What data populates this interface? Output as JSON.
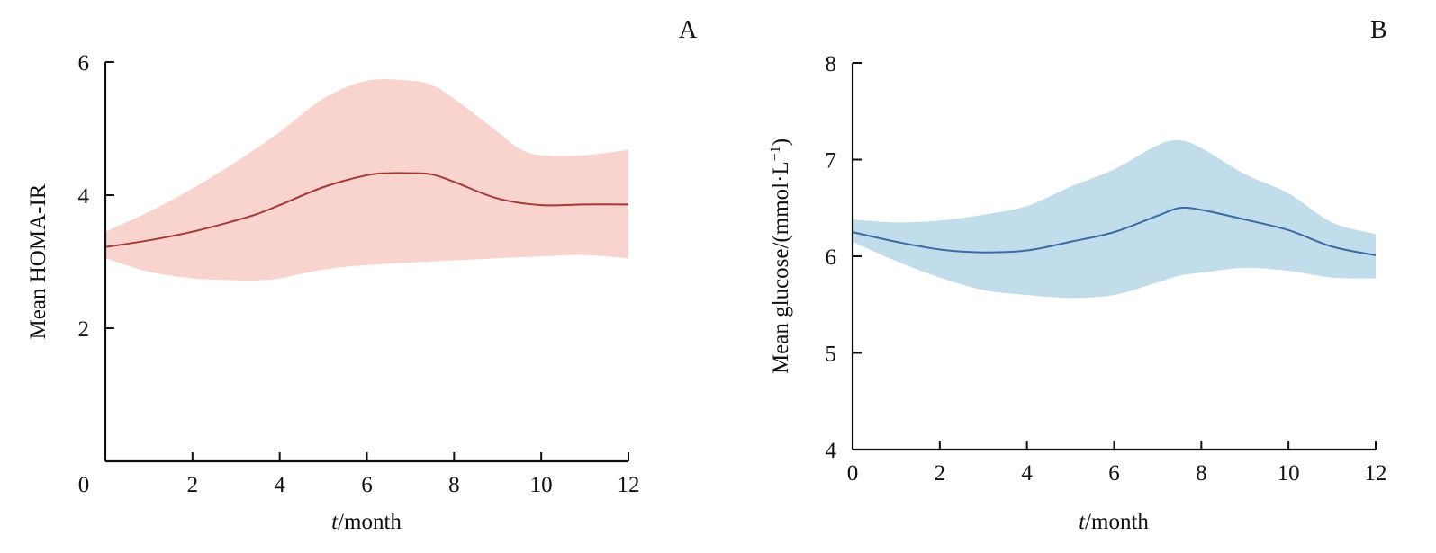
{
  "chart_data": [
    {
      "type": "area",
      "panel_label": "A",
      "title": "",
      "xlabel_italic": "t",
      "xlabel_rest": "/month",
      "ylabel": "Mean HOMA-IR",
      "xlim": [
        0,
        12
      ],
      "ylim": [
        0,
        6
      ],
      "xticks": [
        0,
        2,
        4,
        6,
        8,
        10,
        12
      ],
      "yticks": [
        2,
        4,
        6
      ],
      "grid": false,
      "colors": {
        "band": "#f9d3ce",
        "line": "#a63a33"
      },
      "series": [
        {
          "name": "mean",
          "x": [
            0,
            1,
            2,
            3,
            3.5,
            4,
            5,
            6,
            6.5,
            7,
            7.5,
            8,
            9,
            10,
            11,
            12
          ],
          "y": [
            3.22,
            3.32,
            3.45,
            3.62,
            3.72,
            3.85,
            4.12,
            4.3,
            4.33,
            4.33,
            4.31,
            4.2,
            3.95,
            3.85,
            3.86,
            3.86
          ]
        },
        {
          "name": "upper",
          "x": [
            0,
            1,
            2,
            3,
            4,
            5,
            6,
            7,
            7.5,
            8,
            9,
            9.5,
            10,
            11,
            12
          ],
          "y": [
            3.45,
            3.75,
            4.1,
            4.5,
            4.95,
            5.45,
            5.72,
            5.72,
            5.65,
            5.45,
            4.95,
            4.7,
            4.6,
            4.6,
            4.68
          ]
        },
        {
          "name": "lower",
          "x": [
            0,
            1,
            2,
            3,
            3.5,
            4,
            5,
            6,
            8,
            10,
            11,
            12
          ],
          "y": [
            3.05,
            2.85,
            2.75,
            2.72,
            2.72,
            2.75,
            2.88,
            2.95,
            3.02,
            3.08,
            3.1,
            3.05
          ]
        }
      ]
    },
    {
      "type": "area",
      "panel_label": "B",
      "title": "",
      "xlabel_italic": "t",
      "xlabel_rest": "/month",
      "ylabel_main": "Mean glucose/(mmol·L",
      "ylabel_sup": "−1",
      "ylabel_end": ")",
      "xlim": [
        0,
        12
      ],
      "ylim": [
        4,
        8
      ],
      "xticks": [
        0,
        2,
        4,
        6,
        8,
        10,
        12
      ],
      "yticks": [
        4,
        5,
        6,
        7,
        8
      ],
      "grid": false,
      "colors": {
        "band": "#c1dcea",
        "line": "#3a6ba3"
      },
      "series": [
        {
          "name": "mean",
          "x": [
            0,
            1,
            2,
            3,
            4,
            5,
            6,
            7,
            7.5,
            8,
            9,
            10,
            11,
            12
          ],
          "y": [
            6.25,
            6.15,
            6.07,
            6.04,
            6.06,
            6.15,
            6.25,
            6.42,
            6.5,
            6.48,
            6.38,
            6.27,
            6.1,
            6.01
          ]
        },
        {
          "name": "upper",
          "x": [
            0,
            1,
            2,
            3,
            4,
            5,
            6,
            7,
            7.5,
            8,
            9,
            10,
            11,
            12
          ],
          "y": [
            6.38,
            6.35,
            6.37,
            6.43,
            6.52,
            6.72,
            6.9,
            7.15,
            7.2,
            7.12,
            6.85,
            6.65,
            6.35,
            6.23
          ]
        },
        {
          "name": "lower",
          "x": [
            0,
            1,
            2,
            3,
            4,
            5,
            6,
            7,
            7.5,
            8,
            9,
            10,
            11,
            12
          ],
          "y": [
            6.15,
            5.95,
            5.78,
            5.65,
            5.6,
            5.57,
            5.6,
            5.73,
            5.8,
            5.83,
            5.88,
            5.85,
            5.78,
            5.77
          ]
        }
      ]
    }
  ]
}
